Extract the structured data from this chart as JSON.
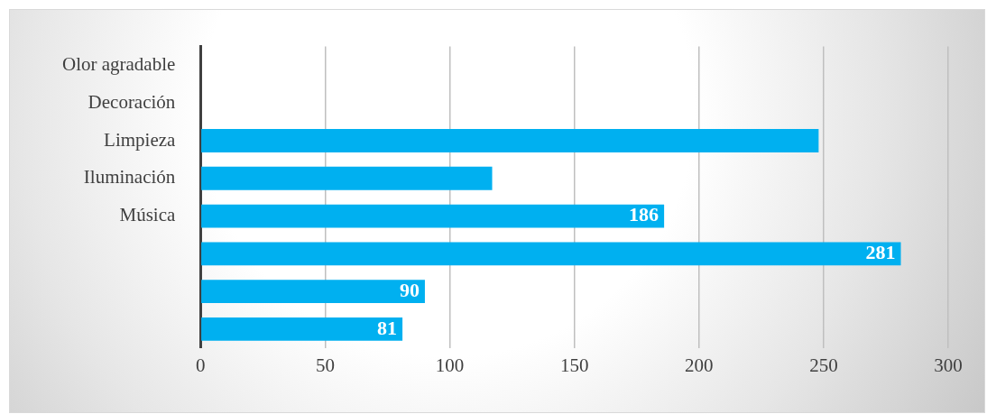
{
  "chart_data": {
    "type": "bar",
    "orientation": "horizontal",
    "categories": [
      "Olor agradable",
      "Decoración",
      "Limpieza",
      "Iluminación",
      "Música",
      null,
      null,
      null
    ],
    "values": [
      null,
      null,
      248,
      117,
      186,
      281,
      90,
      81
    ],
    "value_labels": [
      null,
      null,
      null,
      null,
      "186",
      "281",
      "90",
      "81"
    ],
    "color": "#00b0f0",
    "xlim": [
      0,
      300
    ],
    "xticks": [
      0,
      50,
      100,
      150,
      200,
      250,
      300
    ],
    "grid": "x",
    "legend": false
  }
}
